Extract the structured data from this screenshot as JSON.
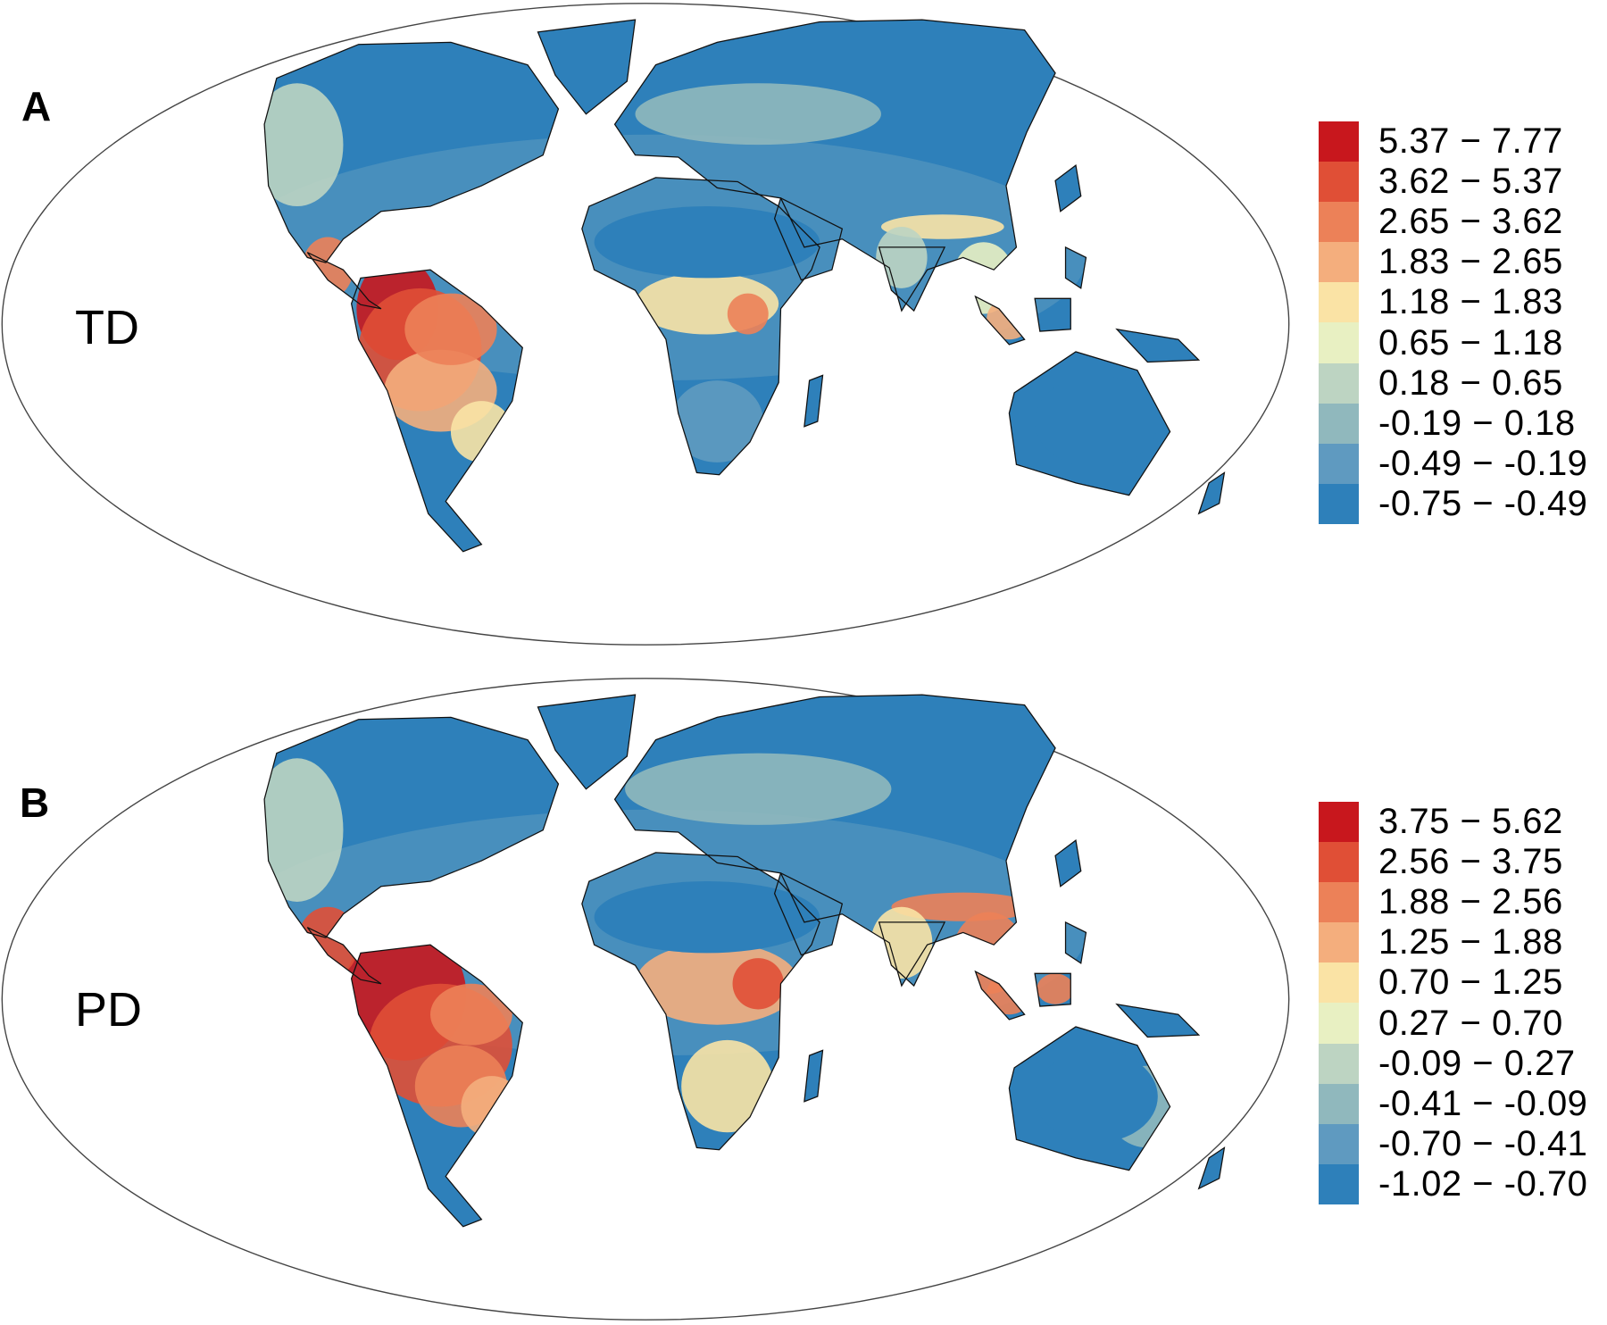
{
  "chart_data": [
    {
      "type": "heatmap",
      "panel": "A",
      "variable": "TD",
      "projection": "Mollweide world map",
      "legend_placement": "right",
      "legend": [
        {
          "label": "5.37 − 7.77",
          "min": 5.37,
          "max": 7.77,
          "color": "#c8171d"
        },
        {
          "label": "3.62 − 5.37",
          "min": 3.62,
          "max": 5.37,
          "color": "#e04f36"
        },
        {
          "label": "2.65 − 3.62",
          "min": 2.65,
          "max": 3.62,
          "color": "#ec8158"
        },
        {
          "label": "1.83 − 2.65",
          "min": 1.83,
          "max": 2.65,
          "color": "#f4ae7d"
        },
        {
          "label": "1.18 − 1.83",
          "min": 1.18,
          "max": 1.83,
          "color": "#fae3a5"
        },
        {
          "label": "0.65 − 1.18",
          "min": 0.65,
          "max": 1.18,
          "color": "#e8f0c2"
        },
        {
          "label": "0.18 − 0.65",
          "min": 0.18,
          "max": 0.65,
          "color": "#bdd4c2"
        },
        {
          "label": "-0.19 − 0.18",
          "min": -0.19,
          "max": 0.18,
          "color": "#90b8bd"
        },
        {
          "label": "-0.49 − -0.19",
          "min": -0.49,
          "max": -0.19,
          "color": "#5f9ac0"
        },
        {
          "label": "-0.75 − -0.49",
          "min": -0.75,
          "max": -0.49,
          "color": "#2e80ba"
        }
      ]
    },
    {
      "type": "heatmap",
      "panel": "B",
      "variable": "PD",
      "projection": "Mollweide world map",
      "legend_placement": "right",
      "legend": [
        {
          "label": "3.75 − 5.62",
          "min": 3.75,
          "max": 5.62,
          "color": "#c8171d"
        },
        {
          "label": "2.56 − 3.75",
          "min": 2.56,
          "max": 3.75,
          "color": "#e04f36"
        },
        {
          "label": "1.88 − 2.56",
          "min": 1.88,
          "max": 2.56,
          "color": "#ec8158"
        },
        {
          "label": "1.25 − 1.88",
          "min": 1.25,
          "max": 1.88,
          "color": "#f4ae7d"
        },
        {
          "label": "0.70 − 1.25",
          "min": 0.7,
          "max": 1.25,
          "color": "#fae3a5"
        },
        {
          "label": "0.27 − 0.70",
          "min": 0.27,
          "max": 0.7,
          "color": "#e8f0c2"
        },
        {
          "label": "-0.09 − 0.27",
          "min": -0.09,
          "max": 0.27,
          "color": "#bdd4c2"
        },
        {
          "label": "-0.41 − -0.09",
          "min": -0.41,
          "max": -0.09,
          "color": "#90b8bd"
        },
        {
          "label": "-0.70 − -0.41",
          "min": -0.7,
          "max": -0.41,
          "color": "#5f9ac0"
        },
        {
          "label": "-1.02 − -0.70",
          "min": -1.02,
          "max": -0.7,
          "color": "#2e80ba"
        }
      ]
    }
  ]
}
